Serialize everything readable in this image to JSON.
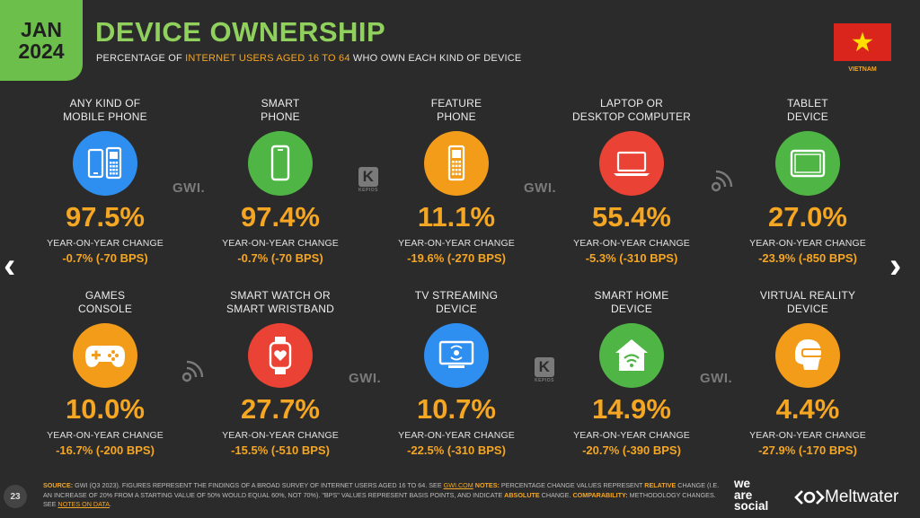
{
  "header": {
    "month": "JAN",
    "year": "2024",
    "title": "DEVICE OWNERSHIP",
    "subtitle_pre": "PERCENTAGE OF ",
    "subtitle_highlight": "INTERNET USERS AGED 16 TO 64",
    "subtitle_post": " WHO OWN EACH KIND OF DEVICE",
    "country": "VIETNAM",
    "flag_colors": {
      "field": "#da251d",
      "star": "#ffde00"
    }
  },
  "nav": {
    "prev": "‹",
    "next": "›"
  },
  "yoy_label": "YEAR-ON-YEAR CHANGE",
  "devices": [
    {
      "label1": "ANY KIND OF",
      "label2": "MOBILE PHONE",
      "value": "97.5%",
      "yoy": "-0.7% (-70 BPS)",
      "icon": "mobile-phones-icon",
      "color": "#2f8ff0"
    },
    {
      "label1": "SMART",
      "label2": "PHONE",
      "value": "97.4%",
      "yoy": "-0.7% (-70 BPS)",
      "icon": "smartphone-icon",
      "color": "#4fb645"
    },
    {
      "label1": "FEATURE",
      "label2": "PHONE",
      "value": "11.1%",
      "yoy": "-19.6% (-270 BPS)",
      "icon": "feature-phone-icon",
      "color": "#f39c1a"
    },
    {
      "label1": "LAPTOP OR",
      "label2": "DESKTOP COMPUTER",
      "value": "55.4%",
      "yoy": "-5.3% (-310 BPS)",
      "icon": "laptop-icon",
      "color": "#ea4335"
    },
    {
      "label1": "TABLET",
      "label2": "DEVICE",
      "value": "27.0%",
      "yoy": "-23.9% (-850 BPS)",
      "icon": "tablet-icon",
      "color": "#4fb645"
    },
    {
      "label1": "GAMES",
      "label2": "CONSOLE",
      "value": "10.0%",
      "yoy": "-16.7% (-200 BPS)",
      "icon": "gamepad-icon",
      "color": "#f39c1a"
    },
    {
      "label1": "SMART WATCH OR",
      "label2": "SMART WRISTBAND",
      "value": "27.7%",
      "yoy": "-15.5% (-510 BPS)",
      "icon": "smartwatch-icon",
      "color": "#ea4335"
    },
    {
      "label1": "TV STREAMING",
      "label2": "DEVICE",
      "value": "10.7%",
      "yoy": "-22.5% (-310 BPS)",
      "icon": "tv-streaming-icon",
      "color": "#2f8ff0"
    },
    {
      "label1": "SMART HOME",
      "label2": "DEVICE",
      "value": "14.9%",
      "yoy": "-20.7% (-390 BPS)",
      "icon": "smart-home-icon",
      "color": "#4fb645"
    },
    {
      "label1": "VIRTUAL REALITY",
      "label2": "DEVICE",
      "value": "4.4%",
      "yoy": "-27.9% (-170 BPS)",
      "icon": "vr-headset-icon",
      "color": "#f39c1a"
    }
  ],
  "source_logos": {
    "gwi": "GWI.",
    "kepios": "KEPIOS"
  },
  "footer": {
    "source_label": "SOURCE:",
    "source_text": " GWI (Q3 2023). FIGURES REPRESENT THE FINDINGS OF A BROAD SURVEY OF INTERNET USERS AGED 16 TO 64. SEE ",
    "gwi_link": "GWI.COM",
    "notes_label": " NOTES:",
    "notes_text": " PERCENTAGE CHANGE VALUES REPRESENT ",
    "relative": "RELATIVE",
    "notes_text2": " CHANGE (I.E. AN INCREASE OF 20% FROM A STARTING VALUE OF 50% WOULD EQUAL 60%, NOT 70%). \"BPS\" VALUES REPRESENT BASIS POINTS, AND INDICATE ",
    "absolute": "ABSOLUTE",
    "notes_text3": " CHANGE. ",
    "comparability_label": "COMPARABILITY:",
    "comparability_text": " METHODOLOGY CHANGES. SEE ",
    "notes_link": "NOTES ON DATA",
    "end": "."
  },
  "page_number": "23",
  "brand": {
    "was1": "we",
    "was2": "are",
    "was3": "social",
    "meltwater": "Meltwater"
  }
}
